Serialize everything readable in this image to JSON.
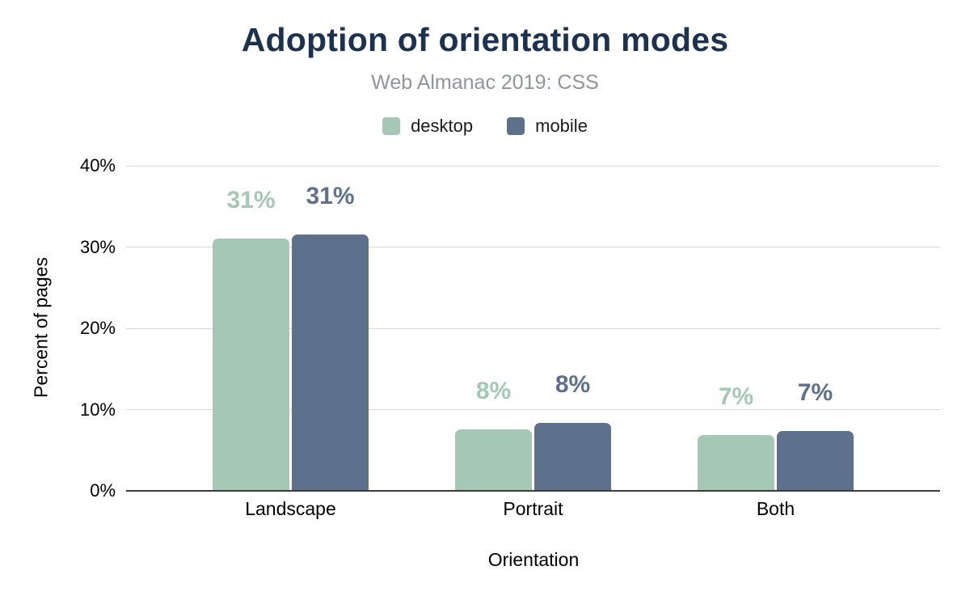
{
  "chart_data": {
    "type": "bar",
    "title": "Adoption of orientation modes",
    "subtitle": "Web Almanac 2019: CSS",
    "categories": [
      "Landscape",
      "Portrait",
      "Both"
    ],
    "series": [
      {
        "name": "desktop",
        "color": "#a4c8b5",
        "values": [
          31.0,
          7.6,
          6.9
        ],
        "labels": [
          "31%",
          "8%",
          "7%"
        ]
      },
      {
        "name": "mobile",
        "color": "#5d708c",
        "values": [
          31.5,
          8.4,
          7.4
        ],
        "labels": [
          "31%",
          "8%",
          "7%"
        ]
      }
    ],
    "xlabel": "Orientation",
    "ylabel": "Percent of pages",
    "ylim": [
      0,
      40
    ],
    "yticks": [
      0,
      10,
      20,
      30,
      40
    ],
    "ytick_labels": [
      "0%",
      "10%",
      "20%",
      "30%",
      "40%"
    ],
    "grid": true,
    "legend_position": "top",
    "colors": {
      "title": "#1d3150",
      "subtitle": "#8f959b",
      "gridline": "#d9d9d9",
      "axis_line": "#3c3c3c",
      "axis_text": "#000000"
    }
  }
}
